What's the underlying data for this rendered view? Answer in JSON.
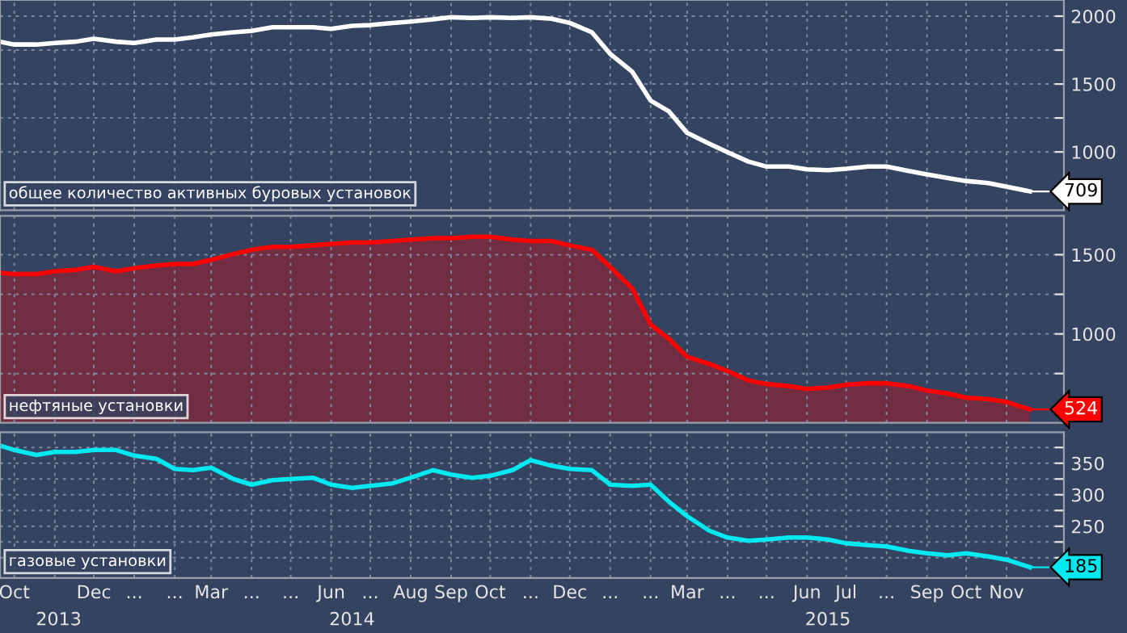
{
  "chart_data": [
    {
      "type": "line",
      "x": [
        "2013-10-04",
        "2013-10-15",
        "2013-11-01",
        "2013-11-15",
        "2013-12-01",
        "2013-12-15",
        "2014-01-01",
        "2014-01-15",
        "2014-02-01",
        "2014-02-15",
        "2014-03-01",
        "2014-03-15",
        "2014-04-01",
        "2014-04-15",
        "2014-05-01",
        "2014-05-15",
        "2014-06-01",
        "2014-06-15",
        "2014-07-01",
        "2014-07-15",
        "2014-08-01",
        "2014-08-15",
        "2014-09-01",
        "2014-09-15",
        "2014-10-01",
        "2014-10-15",
        "2014-11-01",
        "2014-11-15",
        "2014-12-01",
        "2014-12-15",
        "2015-01-01",
        "2015-01-15",
        "2015-02-01",
        "2015-02-15",
        "2015-03-01",
        "2015-03-15",
        "2015-04-01",
        "2015-04-15",
        "2015-05-01",
        "2015-05-15",
        "2015-06-01",
        "2015-06-15",
        "2015-07-01",
        "2015-07-15",
        "2015-08-01",
        "2015-08-15",
        "2015-09-01",
        "2015-09-15",
        "2015-10-01",
        "2015-10-15",
        "2015-11-01",
        "2015-11-15",
        "2015-12-03"
      ],
      "series": [
        {
          "name": "общее количество активных буровых установок",
          "color": "#ffffff",
          "values": [
            1812,
            1791,
            1791,
            1802,
            1812,
            1833,
            1812,
            1802,
            1828,
            1828,
            1844,
            1865,
            1881,
            1892,
            1918,
            1918,
            1918,
            1907,
            1929,
            1934,
            1950,
            1960,
            1976,
            1992,
            1987,
            1992,
            1987,
            1992,
            1981,
            1950,
            1881,
            1722,
            1590,
            1378,
            1299,
            1140,
            1061,
            998,
            929,
            892,
            892,
            871,
            866,
            876,
            892,
            892,
            860,
            834,
            807,
            786,
            770,
            744,
            709
          ],
          "value_labels": [
            null,
            null,
            null,
            null,
            null,
            null,
            null,
            null,
            null,
            null,
            null,
            null,
            null,
            null,
            null,
            null,
            null,
            null,
            null,
            null,
            null,
            null,
            null,
            null,
            null,
            null,
            null,
            null,
            null,
            null,
            null,
            null,
            null,
            null,
            null,
            null,
            null,
            null,
            null,
            null,
            null,
            null,
            null,
            null,
            null,
            null,
            null,
            null,
            null,
            null,
            null,
            null,
            "709"
          ]
        }
      ],
      "xlim": [
        "2013-10-04",
        "2015-12-29"
      ],
      "ylim": [
        571,
        2119
      ],
      "yticks": [
        1000,
        {
          "value": 1250,
          "label": null
        },
        1500,
        {
          "value": 1750,
          "label": null
        },
        2000
      ],
      "xticks": [
        {
          "value": "2013-10-15",
          "label": null
        },
        {
          "value": "2013-11-15",
          "label": null
        },
        {
          "value": "2013-12-15",
          "label": null
        },
        {
          "value": "2014-01-15",
          "label": null
        },
        {
          "value": "2014-02-15",
          "label": null
        },
        {
          "value": "2014-03-15",
          "label": null
        },
        {
          "value": "2014-04-15",
          "label": null
        },
        {
          "value": "2014-05-15",
          "label": null
        },
        {
          "value": "2014-06-15",
          "label": null
        },
        {
          "value": "2014-07-15",
          "label": null
        },
        {
          "value": "2014-08-15",
          "label": null
        },
        {
          "value": "2014-09-15",
          "label": null
        },
        {
          "value": "2014-10-15",
          "label": null
        },
        {
          "value": "2014-11-15",
          "label": null
        },
        {
          "value": "2014-12-15",
          "label": null
        },
        {
          "value": "2015-01-15",
          "label": null
        },
        {
          "value": "2015-02-15",
          "label": null
        },
        {
          "value": "2015-03-15",
          "label": null
        },
        {
          "value": "2015-04-15",
          "label": null
        },
        {
          "value": "2015-05-15",
          "label": null
        },
        {
          "value": "2015-06-15",
          "label": null
        },
        {
          "value": "2015-07-15",
          "label": null
        },
        {
          "value": "2015-08-15",
          "label": null
        },
        {
          "value": "2015-09-15",
          "label": null
        },
        {
          "value": "2015-10-15",
          "label": null
        },
        {
          "value": "2015-11-15",
          "label": null
        }
      ],
      "tick_labels": "y",
      "grid": true,
      "legend": "bottom left",
      "line_style": "solid"
    },
    {
      "type": "area",
      "x": [
        "2013-10-04",
        "2013-10-15",
        "2013-11-01",
        "2013-11-15",
        "2013-12-01",
        "2013-12-15",
        "2014-01-01",
        "2014-01-15",
        "2014-02-01",
        "2014-02-15",
        "2014-03-01",
        "2014-03-15",
        "2014-04-01",
        "2014-04-15",
        "2014-05-01",
        "2014-05-15",
        "2014-06-01",
        "2014-06-15",
        "2014-07-01",
        "2014-07-15",
        "2014-08-01",
        "2014-08-15",
        "2014-09-01",
        "2014-09-15",
        "2014-10-01",
        "2014-10-15",
        "2014-11-01",
        "2014-11-15",
        "2014-12-01",
        "2014-12-15",
        "2015-01-01",
        "2015-01-15",
        "2015-02-01",
        "2015-02-15",
        "2015-03-01",
        "2015-03-15",
        "2015-04-01",
        "2015-04-15",
        "2015-05-01",
        "2015-05-15",
        "2015-06-01",
        "2015-06-15",
        "2015-07-01",
        "2015-07-15",
        "2015-08-01",
        "2015-08-15",
        "2015-09-01",
        "2015-09-15",
        "2015-10-01",
        "2015-10-15",
        "2015-11-01",
        "2015-11-15",
        "2015-12-03"
      ],
      "series": [
        {
          "name": "нефтяные установки",
          "color": "#ff0000",
          "values": [
            1386,
            1377,
            1377,
            1395,
            1404,
            1423,
            1395,
            1414,
            1432,
            1441,
            1441,
            1468,
            1504,
            1531,
            1549,
            1549,
            1559,
            1568,
            1577,
            1577,
            1586,
            1595,
            1604,
            1604,
            1613,
            1613,
            1595,
            1586,
            1586,
            1559,
            1531,
            1423,
            1287,
            1060,
            970,
            856,
            811,
            766,
            707,
            684,
            671,
            653,
            662,
            680,
            689,
            689,
            671,
            643,
            625,
            598,
            589,
            571,
            524
          ],
          "value_labels": [
            null,
            null,
            null,
            null,
            null,
            null,
            null,
            null,
            null,
            null,
            null,
            null,
            null,
            null,
            null,
            null,
            null,
            null,
            null,
            null,
            null,
            null,
            null,
            null,
            null,
            null,
            null,
            null,
            null,
            null,
            null,
            null,
            null,
            null,
            null,
            null,
            null,
            null,
            null,
            null,
            null,
            null,
            null,
            null,
            null,
            null,
            null,
            null,
            null,
            null,
            null,
            null,
            "524"
          ]
        }
      ],
      "xlim": [
        "2013-10-04",
        "2015-12-29"
      ],
      "ylim": [
        439,
        1745
      ],
      "yticks": [
        {
          "value": 750,
          "label": null
        },
        1000,
        {
          "value": 1250,
          "label": null
        },
        1500
      ],
      "xticks": [
        {
          "value": "2013-10-15",
          "label": null
        },
        {
          "value": "2013-11-15",
          "label": null
        },
        {
          "value": "2013-12-15",
          "label": null
        },
        {
          "value": "2014-01-15",
          "label": null
        },
        {
          "value": "2014-02-15",
          "label": null
        },
        {
          "value": "2014-03-15",
          "label": null
        },
        {
          "value": "2014-04-15",
          "label": null
        },
        {
          "value": "2014-05-15",
          "label": null
        },
        {
          "value": "2014-06-15",
          "label": null
        },
        {
          "value": "2014-07-15",
          "label": null
        },
        {
          "value": "2014-08-15",
          "label": null
        },
        {
          "value": "2014-09-15",
          "label": null
        },
        {
          "value": "2014-10-15",
          "label": null
        },
        {
          "value": "2014-11-15",
          "label": null
        },
        {
          "value": "2014-12-15",
          "label": null
        },
        {
          "value": "2015-01-15",
          "label": null
        },
        {
          "value": "2015-02-15",
          "label": null
        },
        {
          "value": "2015-03-15",
          "label": null
        },
        {
          "value": "2015-04-15",
          "label": null
        },
        {
          "value": "2015-05-15",
          "label": null
        },
        {
          "value": "2015-06-15",
          "label": null
        },
        {
          "value": "2015-07-15",
          "label": null
        },
        {
          "value": "2015-08-15",
          "label": null
        },
        {
          "value": "2015-09-15",
          "label": null
        },
        {
          "value": "2015-10-15",
          "label": null
        },
        {
          "value": "2015-11-15",
          "label": null
        }
      ],
      "tick_labels": "y",
      "grid": true,
      "legend": "bottom left",
      "line_style": "solid"
    },
    {
      "type": "line",
      "x": [
        "2013-10-04",
        "2013-10-15",
        "2013-11-01",
        "2013-11-15",
        "2013-12-01",
        "2013-12-15",
        "2014-01-01",
        "2014-01-15",
        "2014-02-01",
        "2014-02-15",
        "2014-03-01",
        "2014-03-15",
        "2014-04-01",
        "2014-04-15",
        "2014-05-01",
        "2014-05-15",
        "2014-06-01",
        "2014-06-15",
        "2014-07-01",
        "2014-07-15",
        "2014-08-01",
        "2014-08-15",
        "2014-09-01",
        "2014-09-15",
        "2014-10-01",
        "2014-10-15",
        "2014-11-01",
        "2014-11-15",
        "2014-12-01",
        "2014-12-15",
        "2015-01-01",
        "2015-01-15",
        "2015-02-01",
        "2015-02-15",
        "2015-03-01",
        "2015-03-15",
        "2015-04-01",
        "2015-04-15",
        "2015-05-01",
        "2015-05-15",
        "2015-06-01",
        "2015-06-15",
        "2015-07-01",
        "2015-07-15",
        "2015-08-01",
        "2015-08-15",
        "2015-09-01",
        "2015-09-15",
        "2015-10-01",
        "2015-10-15",
        "2015-11-01",
        "2015-11-15",
        "2015-12-03"
      ],
      "series": [
        {
          "name": "газовые установки",
          "color": "#00e8f0",
          "values": [
            378,
            371,
            363,
            368,
            368,
            371,
            371,
            362,
            357,
            341,
            339,
            343,
            325,
            316,
            323,
            325,
            327,
            316,
            311,
            314,
            318,
            327,
            339,
            332,
            327,
            330,
            339,
            355,
            346,
            341,
            339,
            316,
            314,
            316,
            289,
            266,
            243,
            232,
            227,
            229,
            232,
            232,
            229,
            223,
            220,
            218,
            211,
            207,
            204,
            207,
            202,
            197,
            185
          ],
          "value_labels": [
            null,
            null,
            null,
            null,
            null,
            null,
            null,
            null,
            null,
            null,
            null,
            null,
            null,
            null,
            null,
            null,
            null,
            null,
            null,
            null,
            null,
            null,
            null,
            null,
            null,
            null,
            null,
            null,
            null,
            null,
            null,
            null,
            null,
            null,
            null,
            null,
            null,
            null,
            null,
            null,
            null,
            null,
            null,
            null,
            null,
            null,
            null,
            null,
            null,
            null,
            null,
            null,
            "185"
          ]
        }
      ],
      "xlim": [
        "2013-10-04",
        "2015-12-29"
      ],
      "ylim": [
        168,
        399
      ],
      "yticks": [
        {
          "value": 200,
          "label": null
        },
        {
          "value": 225,
          "label": null
        },
        250,
        {
          "value": 275,
          "label": null
        },
        300,
        {
          "value": 325,
          "label": null
        },
        350,
        {
          "value": 375,
          "label": null
        }
      ],
      "xticks": [
        {
          "value": "2013-10-15",
          "label": "Oct"
        },
        {
          "value": "2013-11-15",
          "label": null
        },
        {
          "value": "2013-12-15",
          "label": "Dec"
        },
        {
          "value": "2014-01-15",
          "label": "..."
        },
        {
          "value": "2014-02-15",
          "label": "..."
        },
        {
          "value": "2014-03-15",
          "label": "Mar"
        },
        {
          "value": "2014-04-15",
          "label": "..."
        },
        {
          "value": "2014-05-15",
          "label": "..."
        },
        {
          "value": "2014-06-15",
          "label": "Jun"
        },
        {
          "value": "2014-07-15",
          "label": "..."
        },
        {
          "value": "2014-08-15",
          "label": "Aug"
        },
        {
          "value": "2014-09-15",
          "label": "Sep"
        },
        {
          "value": "2014-10-15",
          "label": "Oct"
        },
        {
          "value": "2014-11-15",
          "label": "..."
        },
        {
          "value": "2014-12-15",
          "label": "Dec"
        },
        {
          "value": "2015-01-15",
          "label": "..."
        },
        {
          "value": "2015-02-15",
          "label": "..."
        },
        {
          "value": "2015-03-15",
          "label": "Mar"
        },
        {
          "value": "2015-04-15",
          "label": "..."
        },
        {
          "value": "2015-05-15",
          "label": "..."
        },
        {
          "value": "2015-06-15",
          "label": "Jun"
        },
        {
          "value": "2015-07-15",
          "label": "Jul"
        },
        {
          "value": "2015-08-15",
          "label": "..."
        },
        {
          "value": "2015-09-15",
          "label": "Sep"
        },
        {
          "value": "2015-10-15",
          "label": "Oct"
        },
        {
          "value": "2015-11-15",
          "label": "Nov"
        }
      ],
      "x2lim": [
        "2013-10-04",
        "2015-12-29"
      ],
      "x2ticks": [
        {
          "value": "2013-11-18",
          "label": "2013"
        },
        {
          "value": "2014-07-01",
          "label": "2014"
        },
        {
          "value": "2015-07-01",
          "label": "2015"
        }
      ],
      "grid": true,
      "legend": "bottom left",
      "line_style": "solid"
    }
  ]
}
